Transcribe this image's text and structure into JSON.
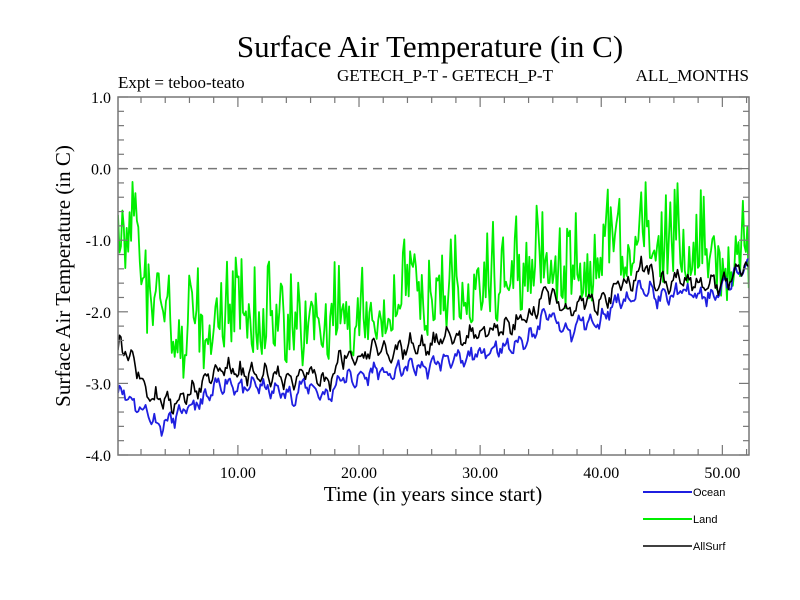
{
  "chart_data": {
    "type": "line",
    "title": "Surface Air Temperature (in C)",
    "subtitle_left": "Expt = teboo-teato",
    "subtitle_center": "GETECH_P-T - GETECH_P-T",
    "subtitle_right": "ALL_MONTHS",
    "xlabel": "Time (in years since start)",
    "ylabel": "Surface Air Temperature (in C)",
    "xlim": [
      0.1,
      52.2
    ],
    "ylim": [
      -4.0,
      1.0
    ],
    "x_ticks": [
      10,
      20,
      30,
      40,
      50
    ],
    "x_tick_labels": [
      "10.00",
      "20.00",
      "30.00",
      "40.00",
      "50.00"
    ],
    "x_minor_step": 2,
    "y_ticks": [
      1.0,
      0.0,
      -1.0,
      -2.0,
      -3.0,
      -4.0
    ],
    "y_tick_labels": [
      "1.0",
      "0.0",
      "-1.0",
      "-2.0",
      "-3.0",
      "-4.0"
    ],
    "y_minor_step": 0.2,
    "reference_line": {
      "y": 0.0,
      "style": "dashed"
    },
    "legend_position": "bottom-right",
    "x": [
      0.5,
      1.5,
      2.5,
      3.5,
      4.5,
      5.5,
      6.5,
      7.5,
      8.5,
      9.5,
      10.5,
      11.5,
      12.5,
      13.5,
      14.5,
      15.5,
      16.5,
      17.5,
      18.5,
      19.5,
      20.5,
      21.5,
      22.5,
      23.5,
      24.5,
      25.5,
      26.5,
      27.5,
      28.5,
      29.5,
      30.5,
      31.5,
      32.5,
      33.5,
      34.5,
      35.5,
      36.5,
      37.5,
      38.5,
      39.5,
      40.5,
      41.5,
      42.5,
      43.5,
      44.5,
      45.5,
      46.5,
      47.5,
      48.5,
      49.5,
      50.5,
      51.5
    ],
    "series": [
      {
        "name": "Ocean",
        "color": "#1f1fe0",
        "values": [
          -3.1,
          -3.3,
          -3.4,
          -3.6,
          -3.5,
          -3.4,
          -3.3,
          -3.2,
          -3.0,
          -3.0,
          -3.1,
          -3.0,
          -3.1,
          -3.1,
          -3.2,
          -3.0,
          -3.1,
          -3.2,
          -2.9,
          -2.95,
          -2.9,
          -2.8,
          -2.9,
          -2.8,
          -2.75,
          -2.8,
          -2.7,
          -2.65,
          -2.7,
          -2.6,
          -2.55,
          -2.5,
          -2.5,
          -2.4,
          -2.3,
          -2.0,
          -2.2,
          -2.3,
          -2.1,
          -2.2,
          -2.0,
          -1.8,
          -1.85,
          -1.6,
          -1.8,
          -1.8,
          -1.7,
          -1.75,
          -1.8,
          -1.75,
          -1.6,
          -1.4
        ]
      },
      {
        "name": "Land",
        "color": "#00ee00",
        "values": [
          -1.2,
          -0.6,
          -2.0,
          -1.8,
          -2.3,
          -2.6,
          -2.2,
          -2.6,
          -2.0,
          -2.3,
          -2.0,
          -2.4,
          -2.1,
          -2.5,
          -2.2,
          -2.5,
          -2.2,
          -2.3,
          -2.1,
          -2.3,
          -2.0,
          -2.1,
          -2.0,
          -2.0,
          -1.9,
          -2.0,
          -1.8,
          -1.9,
          -1.7,
          -1.8,
          -1.6,
          -1.8,
          -1.5,
          -1.7,
          -1.5,
          -1.2,
          -1.6,
          -1.7,
          -1.4,
          -1.6,
          -1.2,
          -1.1,
          -1.3,
          -0.9,
          -1.2,
          -1.3,
          -1.1,
          -1.4,
          -1.2,
          -1.3,
          -1.7,
          -1.3
        ]
      },
      {
        "name": "AllSurf",
        "color": "#000000",
        "values": [
          -2.5,
          -2.7,
          -3.2,
          -3.2,
          -3.3,
          -3.2,
          -3.1,
          -2.9,
          -2.8,
          -2.8,
          -2.9,
          -2.85,
          -2.9,
          -2.9,
          -3.0,
          -2.8,
          -2.9,
          -3.0,
          -2.6,
          -2.7,
          -2.6,
          -2.5,
          -2.6,
          -2.5,
          -2.45,
          -2.5,
          -2.4,
          -2.35,
          -2.4,
          -2.3,
          -2.25,
          -2.25,
          -2.2,
          -2.1,
          -2.0,
          -1.7,
          -1.9,
          -2.0,
          -1.8,
          -1.9,
          -1.8,
          -1.6,
          -1.6,
          -1.3,
          -1.6,
          -1.6,
          -1.5,
          -1.6,
          -1.6,
          -1.6,
          -1.6,
          -1.4
        ]
      }
    ]
  }
}
